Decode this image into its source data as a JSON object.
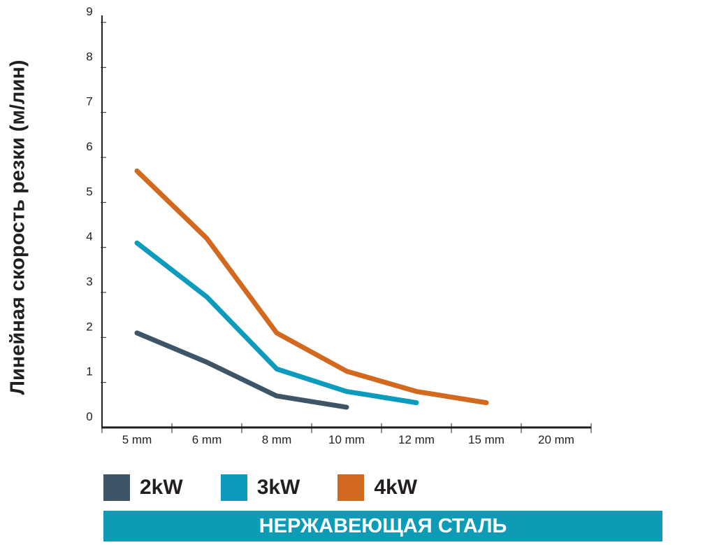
{
  "chart_data": {
    "type": "line",
    "ylabel": "Линейная скорость резки (м/лин)",
    "xlabel": "",
    "categories": [
      "5 mm",
      "6 mm",
      "8 mm",
      "10 mm",
      "12 mm",
      "15 mm",
      "20 mm"
    ],
    "yticks": [
      "0",
      "1",
      "2",
      "3",
      "4",
      "5",
      "6",
      "7",
      "8",
      "9"
    ],
    "ylim": [
      0,
      9
    ],
    "grid": false,
    "legend_position": "bottom",
    "series": [
      {
        "name": "2kW",
        "color": "#3e5467",
        "values": [
          2.1,
          1.45,
          0.7,
          0.45,
          null,
          null,
          null
        ]
      },
      {
        "name": "3kW",
        "color": "#0d9bbd",
        "values": [
          4.1,
          2.9,
          1.3,
          0.8,
          0.55,
          null,
          null
        ]
      },
      {
        "name": "4kW",
        "color": "#d2691e",
        "values": [
          5.7,
          4.2,
          2.1,
          1.25,
          0.8,
          0.55,
          null
        ]
      }
    ]
  },
  "banner": {
    "text": "НЕРЖАВЕЮЩАЯ СТАЛЬ",
    "color": "#0d9bb5"
  }
}
